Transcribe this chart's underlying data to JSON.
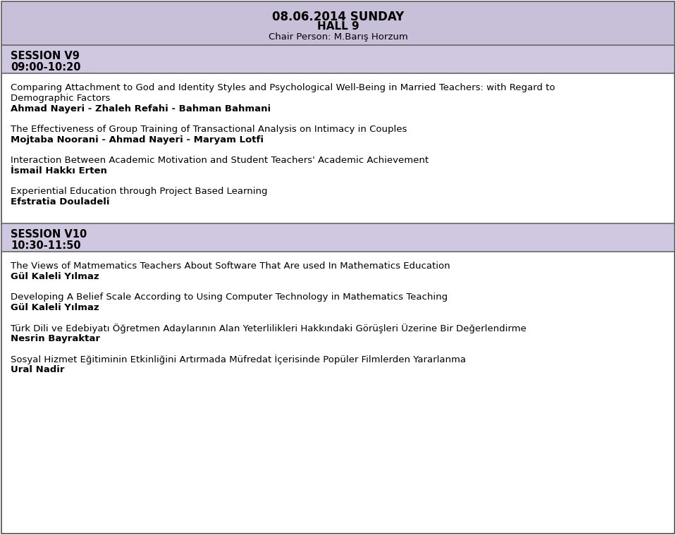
{
  "header_bg": "#c8bfd8",
  "session_bg": "#d0c8e0",
  "content_bg": "#ffffff",
  "border_color": "#666666",
  "text_color": "#000000",
  "title_line1": "08.06.2014 SUNDAY",
  "title_line2": "HALL 9",
  "title_line3": "Chair Person: M.Barış Horzum",
  "session1_label": "SESSION V9",
  "session1_time": "09:00-10:20",
  "session2_label": "SESSION V10",
  "session2_time": "10:30-11:50",
  "entries_v9": [
    {
      "title_lines": [
        "Comparing Attachment to God and Identity Styles and Psychological Well-Being in Married Teachers: with Regard to",
        "Demographic Factors"
      ],
      "authors": "Ahmad Nayeri - Zhaleh Refahi - Bahman Bahmani"
    },
    {
      "title_lines": [
        "The Effectiveness of Group Training of Transactional Analysis on Intimacy in Couples"
      ],
      "authors": "Mojtaba Noorani - Ahmad Nayeri - Maryam Lotfi"
    },
    {
      "title_lines": [
        "Interaction Between Academic Motivation and Student Teachers' Academic Achievement"
      ],
      "authors": "İsmail Hakkı Erten"
    },
    {
      "title_lines": [
        "Experiential Education through Project Based Learning"
      ],
      "authors": "Efstratia Douladeli"
    }
  ],
  "entries_v10": [
    {
      "title_lines": [
        "The Views of Matmematics Teachers About Software That Are used In Mathematics Education"
      ],
      "authors": "Gül Kaleli Yılmaz"
    },
    {
      "title_lines": [
        "Developing A Belief Scale According to Using Computer Technology in Mathematics Teaching"
      ],
      "authors": "Gül Kaleli Yılmaz"
    },
    {
      "title_lines": [
        "Türk Dili ve Edebiyatı Öğretmen Adaylarının Alan Yeterlilikleri Hakkındaki Görüşleri Üzerine Bir Değerlendirme"
      ],
      "authors": "Nesrin Bayraktar"
    },
    {
      "title_lines": [
        "Sosyal Hizmet Eğitiminin Etkinliğini Artırmada Müfredat İçerisinde Popüler Filmlerden Yararlanma"
      ],
      "authors": "Ural Nadir"
    }
  ],
  "fig_width": 9.59,
  "fig_height": 7.59,
  "dpi": 100
}
